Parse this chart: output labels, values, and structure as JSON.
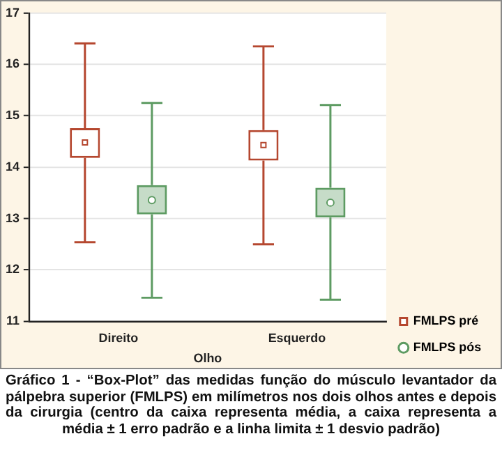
{
  "chart_data": {
    "type": "box",
    "xlabel": "Olho",
    "categories": [
      "Direito",
      "Esquerdo"
    ],
    "series": [
      {
        "name": "FMLPS pré",
        "color": "#b5472f",
        "boxes": [
          {
            "low": 12.54,
            "q1": 14.18,
            "median": 14.48,
            "q3": 14.76,
            "high": 16.41
          },
          {
            "low": 12.5,
            "q1": 14.13,
            "median": 14.43,
            "q3": 14.72,
            "high": 16.35
          }
        ]
      },
      {
        "name": "FMLPS pós",
        "color": "#5d9b62",
        "boxes": [
          {
            "low": 11.46,
            "q1": 13.08,
            "median": 13.36,
            "q3": 13.65,
            "high": 15.25
          },
          {
            "low": 11.42,
            "q1": 13.02,
            "median": 13.31,
            "q3": 13.6,
            "high": 15.21
          }
        ]
      }
    ],
    "ylim": [
      11,
      17
    ],
    "yticks": [
      11,
      12,
      13,
      14,
      15,
      16,
      17
    ],
    "grid": "y",
    "legend": "bottom right",
    "annotations": [
      "Gráfico 1 - “Box-Plot” das medidas função do músculo levantador da pálpebra superior (FMLPS) em milímetros nos dois olhos antes e depois da cirurgia (centro da caixa representa média, a caixa representa a média ± 1 erro padrão e a linha limita ± 1 desvio padrão)"
    ]
  }
}
